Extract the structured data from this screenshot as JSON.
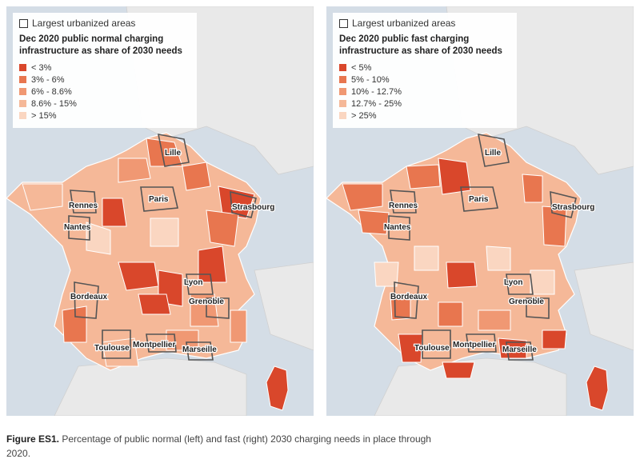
{
  "maps": [
    {
      "legend_top": "Largest urbanized areas",
      "legend_title": "Dec 2020 public normal charging infrastructure as share of 2030 needs",
      "classes": [
        {
          "label": "< 3%",
          "color": "#d9472b"
        },
        {
          "label": "3% - 6%",
          "color": "#e8764f"
        },
        {
          "label": "6% - 8.6%",
          "color": "#f09873"
        },
        {
          "label": "8.6% - 15%",
          "color": "#f5b898"
        },
        {
          "label": "> 15%",
          "color": "#fad6c1"
        }
      ]
    },
    {
      "legend_top": "Largest urbanized areas",
      "legend_title": "Dec 2020 public fast charging infrastructure as share of 2030 needs",
      "classes": [
        {
          "label": "< 5%",
          "color": "#d9472b"
        },
        {
          "label": "5% - 10%",
          "color": "#e8764f"
        },
        {
          "label": "10% - 12.7%",
          "color": "#f09873"
        },
        {
          "label": "12.7% - 25%",
          "color": "#f5b898"
        },
        {
          "label": "> 25%",
          "color": "#fad6c1"
        }
      ]
    }
  ],
  "cities": {
    "lille": "Lille",
    "paris": "Paris",
    "strasbourg": "Strasbourg",
    "rennes": "Rennes",
    "nantes": "Nantes",
    "lyon": "Lyon",
    "bordeaux": "Bordeaux",
    "grenoble": "Grenoble",
    "toulouse": "Toulouse",
    "montpellier": "Montpellier",
    "marseille": "Marseille"
  },
  "caption": {
    "label": "Figure ES1.",
    "text": " Percentage of public normal (left) and fast (right) 2030 charging needs in place through 2020."
  },
  "colors": {
    "sea": "#d4dde6",
    "land_outside": "#e9e9e9",
    "border": "#ffffff",
    "urban_outline": "#555555"
  }
}
